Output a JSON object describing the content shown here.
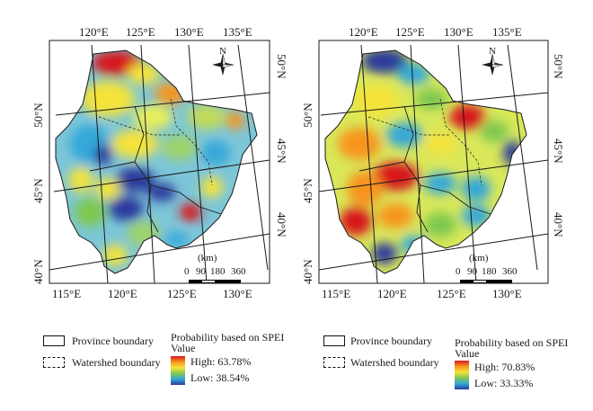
{
  "panels": [
    {
      "id": "a",
      "top_lon": [
        "120°E",
        "125°E",
        "130°E",
        "135°E"
      ],
      "bottom_lon": [
        "115°E",
        "120°E",
        "125°E",
        "130°E"
      ],
      "left_lat": [
        "50°N",
        "45°N",
        "40°N"
      ],
      "right_lat": [
        "50°N",
        "45°N",
        "40°N"
      ],
      "north": "N",
      "scale": {
        "unit": "(km)",
        "ticks": [
          "0",
          "90",
          "180",
          "360"
        ]
      },
      "legend": {
        "province": "Province boundary",
        "watershed": "Watershed boundary",
        "prob_title_line1": "Probability based on SPEI",
        "prob_title_line2": "Value",
        "high": "High: 63.78%",
        "low": "Low: 38.54%"
      }
    },
    {
      "id": "b",
      "top_lon": [
        "120°E",
        "125°E",
        "130°E",
        "135°E"
      ],
      "bottom_lon": [
        "115°E",
        "120°E",
        "125°E",
        "130°E"
      ],
      "left_lat": [
        "50°N",
        "45°N",
        "40°N"
      ],
      "right_lat": [
        "50°N",
        "45°N",
        "40°N"
      ],
      "north": "N",
      "scale": {
        "unit": "(km)",
        "ticks": [
          "0",
          "90",
          "180",
          "360"
        ]
      },
      "legend": {
        "province": "Province boundary",
        "watershed": "Watershed boundary",
        "prob_title_line1": "Probability based on SPEI",
        "prob_title_line2": "Value",
        "high": "High: 70.83%",
        "low": "Low: 33.33%"
      }
    }
  ],
  "colors": {
    "high": "#d7191c",
    "orange": "#f7941d",
    "yellow": "#f5e33a",
    "green": "#7ec850",
    "cyan": "#35a7d9",
    "low": "#2b3a9c",
    "frame": "#1a1a1a",
    "grid": "#1a1a1a"
  }
}
